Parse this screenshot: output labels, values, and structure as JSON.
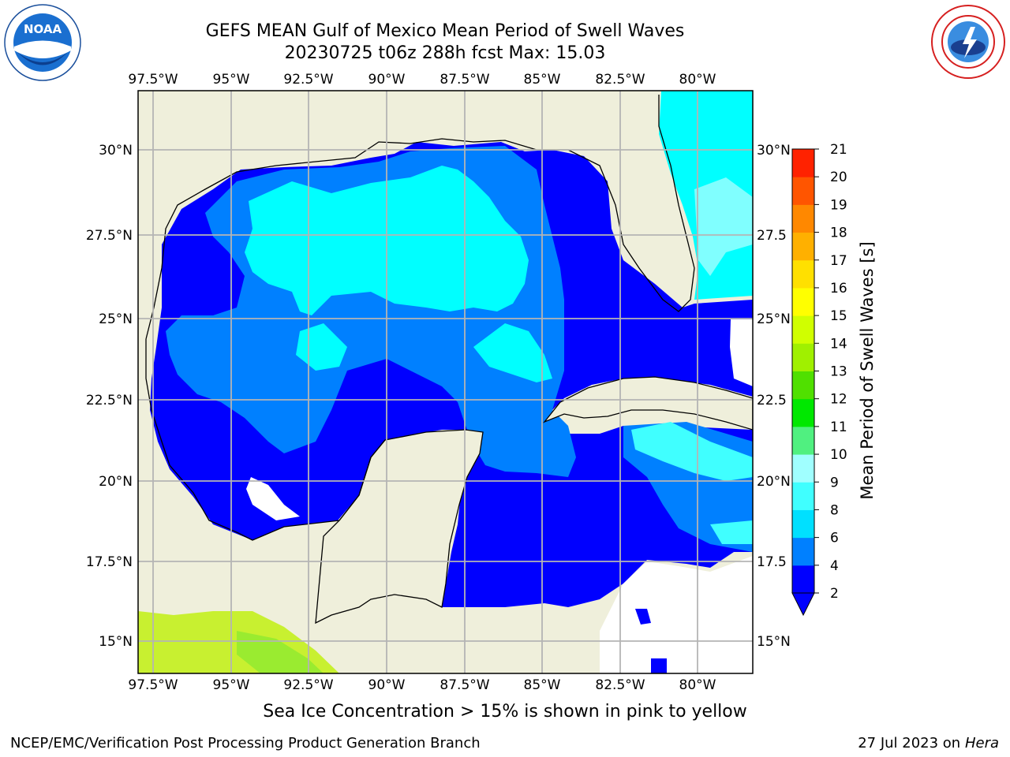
{
  "title": {
    "line1": "GEFS MEAN Gulf of Mexico Mean Period of Swell Waves",
    "line2": "20230725 t06z 288h fcst   Max: 15.03"
  },
  "note": "Sea Ice Concentration > 15% is shown in pink to yellow",
  "credit": "NCEP/EMC/Verification Post Processing Product Generation Branch",
  "run_date": "27 Jul 2023 on",
  "host": "Hera",
  "logos": {
    "left": "noaa-logo",
    "right": "nws-logo"
  },
  "map": {
    "lon_labels": [
      "97.5°W",
      "95°W",
      "92.5°W",
      "90°W",
      "87.5°W",
      "85°W",
      "82.5°W",
      "80°W"
    ],
    "lat_labels_left": [
      "30°N",
      "27.5°N",
      "25°N",
      "22.5°N",
      "20°N",
      "17.5°N",
      "15°N"
    ],
    "lat_labels_right": [
      "30°N",
      "27.5",
      "25°N",
      "22.5",
      "20°N",
      "17.5",
      "15°N"
    ],
    "colors": {
      "land": "#efefdb",
      "grid": "#b4b4b4",
      "coast": "#000000"
    }
  },
  "colorbar": {
    "label": "Mean Period of Swell Waves [s]",
    "ticks": [
      "2",
      "4",
      "6",
      "8",
      "9",
      "10",
      "11",
      "12",
      "13",
      "14",
      "15",
      "16",
      "17",
      "18",
      "19",
      "20",
      "21"
    ],
    "colors": [
      "#0000ff",
      "#0080ff",
      "#00e0ff",
      "#40ffff",
      "#a0ffff",
      "#50f080",
      "#00e800",
      "#50e000",
      "#a0f000",
      "#d0ff00",
      "#ffff00",
      "#ffe000",
      "#ffb000",
      "#ff8800",
      "#ff5500",
      "#ff2200",
      "#ff0000"
    ],
    "under_color": "#0000ff"
  }
}
